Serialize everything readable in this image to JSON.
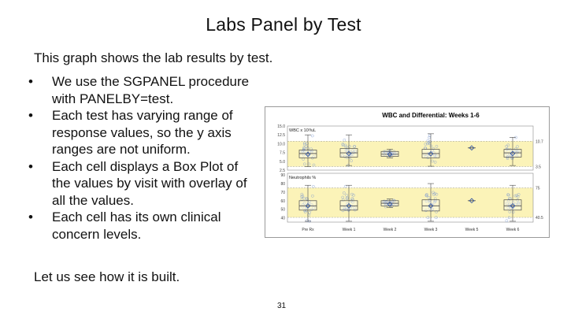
{
  "slide": {
    "title": "Labs Panel by Test",
    "intro": "This graph shows the lab results by test.",
    "bullets": [
      "We use the SGPANEL procedure with PANELBY=test.",
      "Each test has varying range of response values, so the y axis ranges are not uniform.",
      "Each cell displays a Box Plot of the values by visit with overlay of all the values.",
      "Each cell has its own clinical concern levels."
    ],
    "bullet_symbol": "•",
    "outro": "Let us see how it is built.",
    "page_number": "31"
  },
  "chart_data": {
    "type": "box",
    "title": "WBC and Differential: Weeks 1-6",
    "categories": [
      "Pre Rx",
      "Week 1",
      "Week 2",
      "Week 3",
      "Week 5",
      "Week 6"
    ],
    "panels": [
      {
        "label": "WBC x 10³/uL",
        "yticks": [
          "15.0",
          "12.5",
          "10.0",
          "7.5",
          "5.0",
          "2.5"
        ],
        "ylim": [
          2.5,
          15.0
        ],
        "reference_lines": [
          {
            "value": 10.7,
            "label": "10.7"
          },
          {
            "value": 3.5,
            "label": "3.5"
          }
        ],
        "boxes": [
          {
            "q1": 6.0,
            "median": 7.2,
            "q3": 8.2,
            "min": 3.5,
            "max": 12.5,
            "mean": 7.0
          },
          {
            "q1": 6.2,
            "median": 7.4,
            "q3": 8.6,
            "min": 3.8,
            "max": 12.5,
            "mean": 7.2
          },
          {
            "q1": 6.4,
            "median": 7.0,
            "q3": 7.8,
            "min": 6.0,
            "max": 8.4,
            "mean": 7.0
          },
          {
            "q1": 6.0,
            "median": 7.2,
            "q3": 8.4,
            "min": 3.6,
            "max": 12.8,
            "mean": 7.1
          },
          {
            "q1": 8.8,
            "median": 8.8,
            "q3": 8.8,
            "min": 8.8,
            "max": 8.8,
            "mean": 8.8
          },
          {
            "q1": 6.2,
            "median": 7.4,
            "q3": 8.4,
            "min": 3.8,
            "max": 11.8,
            "mean": 7.2
          }
        ]
      },
      {
        "label": "Neutrophils %",
        "yticks": [
          "90",
          "80",
          "70",
          "60",
          "50",
          "40"
        ],
        "ylim": [
          35,
          92
        ],
        "reference_lines": [
          {
            "value": 75,
            "label": "75"
          },
          {
            "value": 40.5,
            "label": "40.5"
          }
        ],
        "boxes": [
          {
            "q1": 49,
            "median": 54,
            "q3": 60,
            "min": 36,
            "max": 78,
            "mean": 54
          },
          {
            "q1": 49,
            "median": 54,
            "q3": 60,
            "min": 36,
            "max": 78,
            "mean": 54
          },
          {
            "q1": 54,
            "median": 57,
            "q3": 60,
            "min": 52,
            "max": 62,
            "mean": 56
          },
          {
            "q1": 48,
            "median": 54,
            "q3": 61,
            "min": 36,
            "max": 80,
            "mean": 54
          },
          {
            "q1": 60,
            "median": 60,
            "q3": 60,
            "min": 60,
            "max": 60,
            "mean": 60
          },
          {
            "q1": 49,
            "median": 54,
            "q3": 61,
            "min": 36,
            "max": 78,
            "mean": 54
          }
        ]
      }
    ],
    "colors": {
      "box": "#4a4a4a",
      "mean_marker": "#2a4fa0",
      "points": "#7f9bd0",
      "concern_band": "#fbf3b8",
      "reference": "#9a9a9a"
    }
  }
}
